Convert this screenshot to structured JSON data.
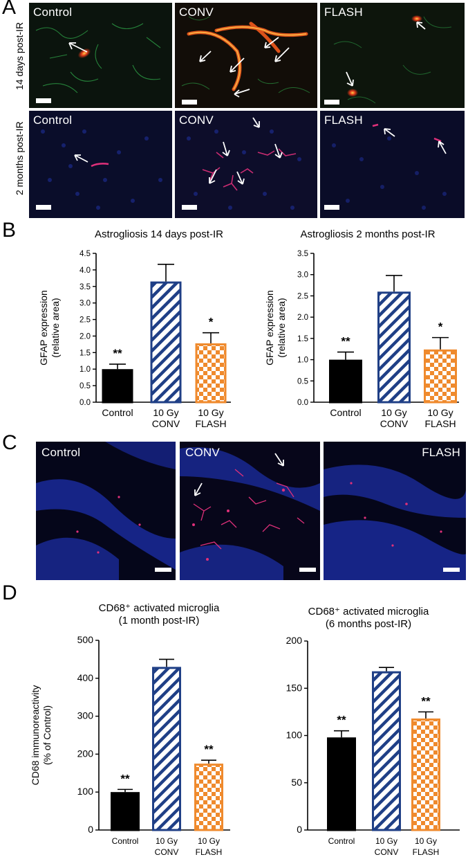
{
  "panel_letters": {
    "a": "A",
    "b": "B",
    "c": "C",
    "d": "D"
  },
  "panel_a": {
    "row_labels": [
      "14 days post-IR",
      "2 months post-IR"
    ],
    "column_labels": [
      "Control",
      "CONV",
      "FLASH"
    ]
  },
  "panel_c": {
    "column_labels": [
      "Control",
      "CONV",
      "FLASH"
    ]
  },
  "colors": {
    "control_fill": "#000000",
    "conv_stroke": "#1f3f86",
    "flash_stroke": "#ef8a2d",
    "gfap_red": "#e23a1a",
    "cd31_green": "#2fa84a",
    "dapi_blue": "#1c2fa8",
    "cd68_magenta": "#e0307a"
  },
  "chart_data": [
    {
      "type": "bar",
      "title": "Astrogliosis 14 days post-IR",
      "ylabel": [
        "GFAP expression",
        "(relative area)"
      ],
      "categories": [
        [
          "Control"
        ],
        [
          "10 Gy",
          "CONV"
        ],
        [
          "10 Gy",
          "FLASH"
        ]
      ],
      "values": [
        1.0,
        3.65,
        1.78
      ],
      "errors": [
        0.15,
        0.52,
        0.32
      ],
      "significance": [
        "**",
        "",
        "*"
      ],
      "ylim": [
        0,
        4.5
      ],
      "yticks": [
        "0.0",
        "0.5",
        "1.0",
        "1.5",
        "2.0",
        "2.5",
        "3.0",
        "3.5",
        "4.0",
        "4.5"
      ],
      "patterns": [
        "solid",
        "diagonal",
        "checker"
      ]
    },
    {
      "type": "bar",
      "title": "Astrogliosis 2 months post-IR",
      "ylabel": [
        "GFAP expression",
        "(relative area)"
      ],
      "categories": [
        [
          "Control"
        ],
        [
          "10 Gy",
          "CONV"
        ],
        [
          "10 Gy",
          "FLASH"
        ]
      ],
      "values": [
        1.0,
        2.6,
        1.24
      ],
      "errors": [
        0.18,
        0.38,
        0.28
      ],
      "significance": [
        "**",
        "",
        "*"
      ],
      "ylim": [
        0,
        3.5
      ],
      "yticks": [
        "0.0",
        "0.5",
        "1.0",
        "1.5",
        "2.0",
        "2.5",
        "3.0",
        "3.5"
      ],
      "patterns": [
        "solid",
        "diagonal",
        "checker"
      ]
    },
    {
      "type": "bar",
      "title": [
        "CD68⁺ activated microglia",
        "(1 month post-IR)"
      ],
      "ylabel": [
        "CD68 immunoreactivity",
        "(% of Control)"
      ],
      "categories": [
        [
          "Control"
        ],
        [
          "10 Gy",
          "CONV"
        ],
        [
          "10 Gy",
          "FLASH"
        ]
      ],
      "values": [
        100,
        430,
        175
      ],
      "errors": [
        7,
        20,
        9
      ],
      "significance": [
        "**",
        "",
        "**"
      ],
      "ylim": [
        0,
        500
      ],
      "yticks": [
        "0",
        "100",
        "200",
        "300",
        "400",
        "500"
      ],
      "patterns": [
        "solid",
        "diagonal",
        "checker"
      ]
    },
    {
      "type": "bar",
      "title": [
        "CD68⁺ activated microglia",
        "(6 months post-IR)"
      ],
      "ylabel": [],
      "categories": [
        [
          "Control"
        ],
        [
          "10 Gy",
          "CONV"
        ],
        [
          "10 Gy",
          "FLASH"
        ]
      ],
      "values": [
        98,
        168,
        118
      ],
      "errors": [
        7,
        4,
        7
      ],
      "significance": [
        "**",
        "",
        "**"
      ],
      "ylim": [
        0,
        200
      ],
      "yticks": [
        "0",
        "50",
        "100",
        "150",
        "200"
      ],
      "patterns": [
        "solid",
        "diagonal",
        "checker"
      ]
    }
  ]
}
